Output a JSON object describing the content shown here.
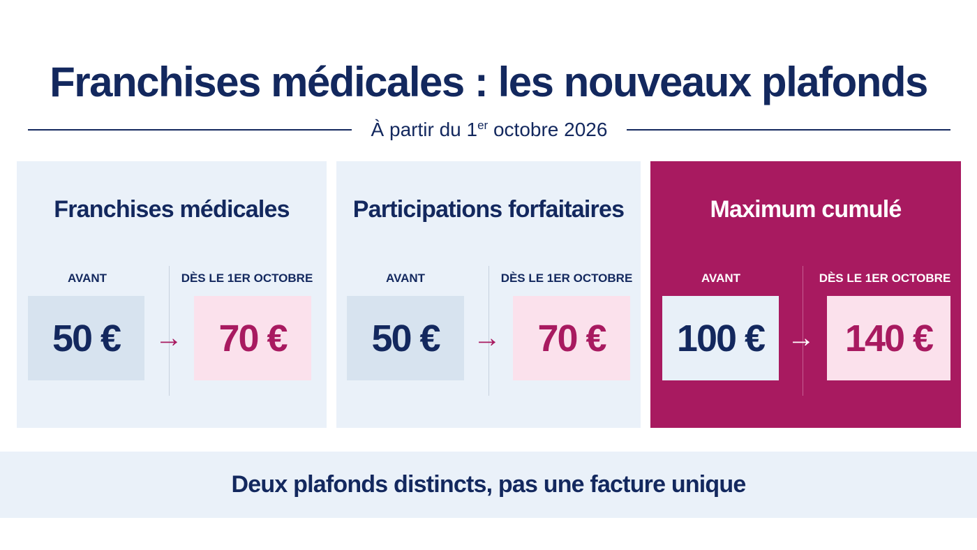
{
  "title": "Franchises médicales : les nouveaux plafonds",
  "subtitle": {
    "prefix": "À partir du 1",
    "superscript": "er",
    "suffix": " octobre 2026"
  },
  "cards": [
    {
      "title": "Franchises médicales",
      "before_label": "AVANT",
      "after_label": "DÈS LE 1ER OCTOBRE",
      "before_value": "50 €",
      "after_value": "70 €",
      "arrow": "→"
    },
    {
      "title": "Participations forfaitaires",
      "before_label": "AVANT",
      "after_label": "DÈS LE 1ER OCTOBRE",
      "before_value": "50 €",
      "after_value": "70 €",
      "arrow": "→"
    },
    {
      "title": "Maximum cumulé",
      "before_label": "AVANT",
      "after_label": "DÈS LE 1ER OCTOBRE",
      "before_value": "100 €",
      "after_value": "140 €",
      "arrow": "→"
    }
  ],
  "footer": "Deux plafonds distincts, pas une facture unique",
  "colors": {
    "navy": "#13285e",
    "accent": "#a81a60",
    "light_blue": "#eaf1f9",
    "light_pink": "#fbe1ec"
  },
  "icons": {
    "arrow": "arrow-right-icon"
  }
}
